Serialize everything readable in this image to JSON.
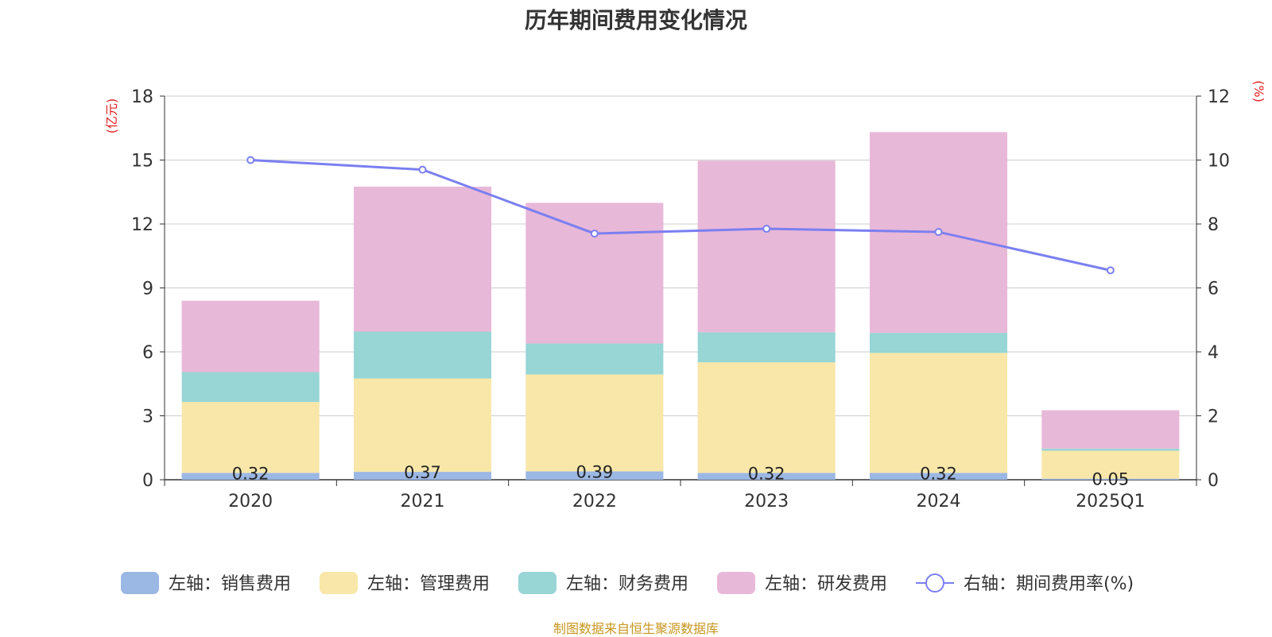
{
  "chart_data": {
    "type": "bar",
    "stacked": true,
    "title": "历年期间费用变化情况",
    "categories": [
      "2020",
      "2021",
      "2022",
      "2023",
      "2024",
      "2025Q1"
    ],
    "y_left": {
      "unit_label": "(亿元)",
      "ylim": [
        0,
        18
      ],
      "ticks": [
        "0",
        "3",
        "6",
        "9",
        "12",
        "15",
        "18"
      ]
    },
    "y_right": {
      "unit_label": "(%)",
      "ylim": [
        0,
        12
      ],
      "ticks": [
        "0",
        "2",
        "4",
        "6",
        "8",
        "10",
        "12"
      ]
    },
    "grid": true,
    "legend_position": "bottom",
    "series": [
      {
        "name": "左轴：销售费用",
        "axis": "left",
        "kind": "bar",
        "color": "#9bb7e3",
        "values": [
          0.32,
          0.37,
          0.39,
          0.32,
          0.32,
          0.05
        ],
        "data_labels": [
          "0.32",
          "0.37",
          "0.39",
          "0.32",
          "0.32",
          "0.05"
        ]
      },
      {
        "name": "左轴：管理费用",
        "axis": "left",
        "kind": "bar",
        "color": "#f8e7a8",
        "values": [
          3.33,
          4.38,
          4.55,
          5.19,
          5.63,
          1.31
        ]
      },
      {
        "name": "左轴：财务费用",
        "axis": "left",
        "kind": "bar",
        "color": "#98d5d5",
        "values": [
          1.4,
          2.2,
          1.45,
          1.41,
          0.94,
          0.1
        ]
      },
      {
        "name": "左轴：研发费用",
        "axis": "left",
        "kind": "bar",
        "color": "#e8b8d8",
        "values": [
          3.35,
          6.8,
          6.6,
          8.05,
          9.42,
          1.8
        ]
      },
      {
        "name": "右轴：期间费用率(%)",
        "axis": "right",
        "kind": "line",
        "color": "#7b7ff0",
        "values": [
          10.0,
          9.7,
          7.7,
          7.85,
          7.75,
          6.55
        ]
      }
    ]
  },
  "source_note": "制图数据来自恒生聚源数据库"
}
